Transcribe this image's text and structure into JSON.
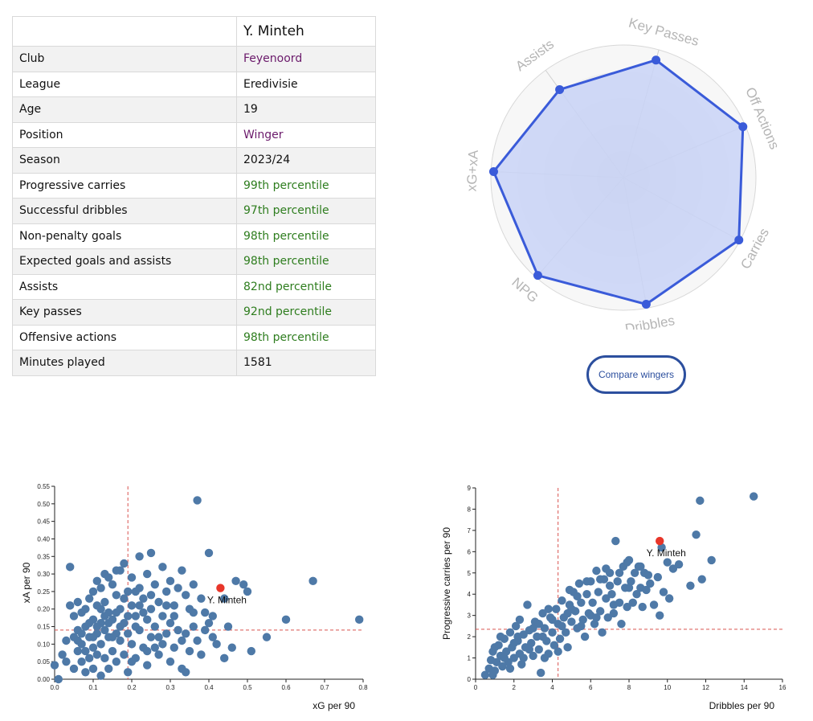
{
  "player_table": {
    "header": "Y. Minteh",
    "rows": [
      {
        "label": "Club",
        "value": "Feyenoord",
        "style": "purple"
      },
      {
        "label": "League",
        "value": "Eredivisie",
        "style": ""
      },
      {
        "label": "Age",
        "value": "19",
        "style": ""
      },
      {
        "label": "Position",
        "value": "Winger",
        "style": "purple"
      },
      {
        "label": "Season",
        "value": "2023/24",
        "style": ""
      },
      {
        "label": "Progressive carries",
        "value": "99th percentile",
        "style": "green"
      },
      {
        "label": "Successful dribbles",
        "value": "97th percentile",
        "style": "green"
      },
      {
        "label": "Non-penalty goals",
        "value": "98th percentile",
        "style": "green"
      },
      {
        "label": "Expected goals and assists",
        "value": "98th percentile",
        "style": "green"
      },
      {
        "label": "Assists",
        "value": "82nd percentile",
        "style": "green"
      },
      {
        "label": "Key passes",
        "value": "92nd percentile",
        "style": "green"
      },
      {
        "label": "Offensive actions",
        "value": "98th percentile",
        "style": "green"
      },
      {
        "label": "Minutes played",
        "value": "1581",
        "style": ""
      }
    ]
  },
  "compare_button": "Compare wingers",
  "colors": {
    "radar_line": "#3a5bd9",
    "radar_fill": "#c9d3f7",
    "scatter_point": "#4e79a7",
    "highlight_point": "#e8362a",
    "median_line": "#d9534f",
    "purple_text": "#6b1a6b",
    "green_text": "#2e7d1e"
  },
  "chart_data": [
    {
      "type": "radar",
      "axes": [
        "Key Passes",
        "Off Actions",
        "Carries",
        "Dribbles",
        "NPG",
        "xG+xA",
        "Assists"
      ],
      "values": [
        92,
        98,
        99,
        97,
        98,
        98,
        82
      ],
      "range": [
        0,
        100
      ]
    },
    {
      "type": "scatter",
      "xlabel": "xG per 90",
      "ylabel": "xA per 90",
      "xlim": [
        0,
        0.8
      ],
      "ylim": [
        0,
        0.55
      ],
      "xticks": [
        "0.0",
        "0.1",
        "0.2",
        "0.3",
        "0.4",
        "0.5",
        "0.6",
        "0.7",
        "0.8"
      ],
      "yticks": [
        "0.00",
        "0.05",
        "0.10",
        "0.15",
        "0.20",
        "0.25",
        "0.30",
        "0.35",
        "0.40",
        "0.45",
        "0.50",
        "0.55"
      ],
      "median_x": 0.19,
      "median_y": 0.14,
      "highlight": {
        "name": "Y. Minteh",
        "x": 0.43,
        "y": 0.26
      },
      "points": [
        [
          0.0,
          0.04
        ],
        [
          0.01,
          0.0
        ],
        [
          0.02,
          0.07
        ],
        [
          0.03,
          0.11
        ],
        [
          0.03,
          0.05
        ],
        [
          0.04,
          0.32
        ],
        [
          0.04,
          0.21
        ],
        [
          0.05,
          0.18
        ],
        [
          0.05,
          0.12
        ],
        [
          0.05,
          0.03
        ],
        [
          0.06,
          0.22
        ],
        [
          0.06,
          0.14
        ],
        [
          0.06,
          0.08
        ],
        [
          0.07,
          0.19
        ],
        [
          0.07,
          0.1
        ],
        [
          0.07,
          0.05
        ],
        [
          0.08,
          0.2
        ],
        [
          0.08,
          0.15
        ],
        [
          0.08,
          0.02
        ],
        [
          0.09,
          0.23
        ],
        [
          0.09,
          0.12
        ],
        [
          0.09,
          0.06
        ],
        [
          0.1,
          0.25
        ],
        [
          0.1,
          0.17
        ],
        [
          0.1,
          0.09
        ],
        [
          0.1,
          0.03
        ],
        [
          0.11,
          0.28
        ],
        [
          0.11,
          0.21
        ],
        [
          0.11,
          0.13
        ],
        [
          0.11,
          0.07
        ],
        [
          0.12,
          0.26
        ],
        [
          0.12,
          0.16
        ],
        [
          0.12,
          0.1
        ],
        [
          0.12,
          0.01
        ],
        [
          0.13,
          0.3
        ],
        [
          0.13,
          0.22
        ],
        [
          0.13,
          0.14
        ],
        [
          0.13,
          0.06
        ],
        [
          0.14,
          0.19
        ],
        [
          0.14,
          0.12
        ],
        [
          0.14,
          0.03
        ],
        [
          0.15,
          0.27
        ],
        [
          0.15,
          0.17
        ],
        [
          0.15,
          0.08
        ],
        [
          0.16,
          0.24
        ],
        [
          0.16,
          0.13
        ],
        [
          0.16,
          0.05
        ],
        [
          0.17,
          0.31
        ],
        [
          0.17,
          0.2
        ],
        [
          0.17,
          0.11
        ],
        [
          0.18,
          0.33
        ],
        [
          0.18,
          0.16
        ],
        [
          0.18,
          0.07
        ],
        [
          0.19,
          0.25
        ],
        [
          0.19,
          0.13
        ],
        [
          0.19,
          0.02
        ],
        [
          0.2,
          0.29
        ],
        [
          0.2,
          0.21
        ],
        [
          0.2,
          0.1
        ],
        [
          0.21,
          0.18
        ],
        [
          0.21,
          0.06
        ],
        [
          0.22,
          0.35
        ],
        [
          0.22,
          0.26
        ],
        [
          0.22,
          0.14
        ],
        [
          0.23,
          0.23
        ],
        [
          0.23,
          0.09
        ],
        [
          0.24,
          0.3
        ],
        [
          0.24,
          0.17
        ],
        [
          0.24,
          0.04
        ],
        [
          0.25,
          0.36
        ],
        [
          0.25,
          0.2
        ],
        [
          0.25,
          0.12
        ],
        [
          0.26,
          0.27
        ],
        [
          0.26,
          0.15
        ],
        [
          0.27,
          0.22
        ],
        [
          0.27,
          0.07
        ],
        [
          0.28,
          0.32
        ],
        [
          0.28,
          0.18
        ],
        [
          0.28,
          0.1
        ],
        [
          0.29,
          0.25
        ],
        [
          0.29,
          0.13
        ],
        [
          0.3,
          0.28
        ],
        [
          0.3,
          0.16
        ],
        [
          0.3,
          0.05
        ],
        [
          0.31,
          0.21
        ],
        [
          0.31,
          0.09
        ],
        [
          0.32,
          0.26
        ],
        [
          0.32,
          0.14
        ],
        [
          0.33,
          0.31
        ],
        [
          0.33,
          0.11
        ],
        [
          0.33,
          0.03
        ],
        [
          0.34,
          0.24
        ],
        [
          0.34,
          0.02
        ],
        [
          0.35,
          0.2
        ],
        [
          0.35,
          0.08
        ],
        [
          0.36,
          0.27
        ],
        [
          0.36,
          0.15
        ],
        [
          0.37,
          0.51
        ],
        [
          0.37,
          0.11
        ],
        [
          0.38,
          0.23
        ],
        [
          0.38,
          0.07
        ],
        [
          0.39,
          0.19
        ],
        [
          0.4,
          0.36
        ],
        [
          0.4,
          0.16
        ],
        [
          0.41,
          0.12
        ],
        [
          0.42,
          0.1
        ],
        [
          0.44,
          0.06
        ],
        [
          0.44,
          0.23
        ],
        [
          0.45,
          0.15
        ],
        [
          0.46,
          0.09
        ],
        [
          0.47,
          0.28
        ],
        [
          0.49,
          0.27
        ],
        [
          0.5,
          0.25
        ],
        [
          0.51,
          0.08
        ],
        [
          0.55,
          0.12
        ],
        [
          0.6,
          0.17
        ],
        [
          0.67,
          0.28
        ],
        [
          0.79,
          0.17
        ],
        [
          0.14,
          0.29
        ],
        [
          0.16,
          0.31
        ],
        [
          0.21,
          0.25
        ],
        [
          0.23,
          0.19
        ],
        [
          0.26,
          0.09
        ],
        [
          0.18,
          0.23
        ],
        [
          0.12,
          0.2
        ],
        [
          0.09,
          0.16
        ],
        [
          0.15,
          0.12
        ],
        [
          0.21,
          0.15
        ],
        [
          0.27,
          0.12
        ],
        [
          0.31,
          0.18
        ],
        [
          0.24,
          0.08
        ],
        [
          0.2,
          0.05
        ],
        [
          0.17,
          0.15
        ],
        [
          0.13,
          0.18
        ],
        [
          0.1,
          0.12
        ],
        [
          0.08,
          0.08
        ],
        [
          0.06,
          0.11
        ],
        [
          0.29,
          0.21
        ],
        [
          0.34,
          0.13
        ],
        [
          0.36,
          0.19
        ],
        [
          0.39,
          0.14
        ],
        [
          0.41,
          0.18
        ],
        [
          0.25,
          0.24
        ],
        [
          0.22,
          0.21
        ],
        [
          0.19,
          0.18
        ],
        [
          0.16,
          0.19
        ],
        [
          0.14,
          0.16
        ],
        [
          0.11,
          0.15
        ],
        [
          0.07,
          0.13
        ]
      ]
    },
    {
      "type": "scatter",
      "xlabel": "Dribbles per 90",
      "ylabel": "Progressive carries per 90",
      "xlim": [
        0,
        16
      ],
      "ylim": [
        0,
        9
      ],
      "xticks": [
        "0",
        "2",
        "4",
        "6",
        "8",
        "10",
        "12",
        "14",
        "16"
      ],
      "yticks": [
        "0",
        "1",
        "2",
        "3",
        "4",
        "5",
        "6",
        "7",
        "8",
        "9"
      ],
      "median_x": 4.3,
      "median_y": 2.35,
      "highlight": {
        "name": "Y. Minteh",
        "x": 9.6,
        "y": 6.5
      },
      "points": [
        [
          0.5,
          0.2
        ],
        [
          0.7,
          0.5
        ],
        [
          0.8,
          0.9
        ],
        [
          0.9,
          1.3
        ],
        [
          1.0,
          0.4
        ],
        [
          1.1,
          0.8
        ],
        [
          1.2,
          1.6
        ],
        [
          1.3,
          1.1
        ],
        [
          1.4,
          0.6
        ],
        [
          1.5,
          1.9
        ],
        [
          1.6,
          1.3
        ],
        [
          1.7,
          0.8
        ],
        [
          1.8,
          2.2
        ],
        [
          1.9,
          1.5
        ],
        [
          2.0,
          1.0
        ],
        [
          2.1,
          2.5
        ],
        [
          2.2,
          1.8
        ],
        [
          2.3,
          1.2
        ],
        [
          2.4,
          0.7
        ],
        [
          2.5,
          2.1
        ],
        [
          2.6,
          1.5
        ],
        [
          2.7,
          3.5
        ],
        [
          2.8,
          2.3
        ],
        [
          2.9,
          1.7
        ],
        [
          3.0,
          1.1
        ],
        [
          3.1,
          2.7
        ],
        [
          3.2,
          2.0
        ],
        [
          3.3,
          1.4
        ],
        [
          3.4,
          0.3
        ],
        [
          3.5,
          3.1
        ],
        [
          3.6,
          2.4
        ],
        [
          3.7,
          1.8
        ],
        [
          3.8,
          1.2
        ],
        [
          3.9,
          2.9
        ],
        [
          4.0,
          2.2
        ],
        [
          4.1,
          1.6
        ],
        [
          4.2,
          3.3
        ],
        [
          4.3,
          2.6
        ],
        [
          4.4,
          1.9
        ],
        [
          4.5,
          3.7
        ],
        [
          4.6,
          2.9
        ],
        [
          4.7,
          2.2
        ],
        [
          4.8,
          1.5
        ],
        [
          4.9,
          3.5
        ],
        [
          5.0,
          2.7
        ],
        [
          5.1,
          4.1
        ],
        [
          5.2,
          3.2
        ],
        [
          5.3,
          2.4
        ],
        [
          5.4,
          4.5
        ],
        [
          5.5,
          3.6
        ],
        [
          5.6,
          2.8
        ],
        [
          5.7,
          2.0
        ],
        [
          5.8,
          4.0
        ],
        [
          5.9,
          3.1
        ],
        [
          6.0,
          4.6
        ],
        [
          6.1,
          3.6
        ],
        [
          6.2,
          2.6
        ],
        [
          6.3,
          5.1
        ],
        [
          6.4,
          4.1
        ],
        [
          6.5,
          3.2
        ],
        [
          6.6,
          2.2
        ],
        [
          6.7,
          4.7
        ],
        [
          6.8,
          3.8
        ],
        [
          6.9,
          2.9
        ],
        [
          7.0,
          5.0
        ],
        [
          7.1,
          4.0
        ],
        [
          7.2,
          3.1
        ],
        [
          7.3,
          6.5
        ],
        [
          7.4,
          4.6
        ],
        [
          7.5,
          3.6
        ],
        [
          7.6,
          2.6
        ],
        [
          7.7,
          5.3
        ],
        [
          7.8,
          4.3
        ],
        [
          7.9,
          3.4
        ],
        [
          8.0,
          5.6
        ],
        [
          8.1,
          4.6
        ],
        [
          8.2,
          3.6
        ],
        [
          8.3,
          5.0
        ],
        [
          8.4,
          4.0
        ],
        [
          8.5,
          5.3
        ],
        [
          8.6,
          4.3
        ],
        [
          8.7,
          3.4
        ],
        [
          8.8,
          5.0
        ],
        [
          8.9,
          4.2
        ],
        [
          9.1,
          4.5
        ],
        [
          9.3,
          3.5
        ],
        [
          9.5,
          4.8
        ],
        [
          9.6,
          3.0
        ],
        [
          9.7,
          6.2
        ],
        [
          9.8,
          4.1
        ],
        [
          10.0,
          5.5
        ],
        [
          10.1,
          3.8
        ],
        [
          10.3,
          5.2
        ],
        [
          10.6,
          5.4
        ],
        [
          11.2,
          4.4
        ],
        [
          11.5,
          6.8
        ],
        [
          11.7,
          8.4
        ],
        [
          11.8,
          4.7
        ],
        [
          12.3,
          5.6
        ],
        [
          14.5,
          8.6
        ],
        [
          6.0,
          3.0
        ],
        [
          5.5,
          2.5
        ],
        [
          5.0,
          3.3
        ],
        [
          4.5,
          2.5
        ],
        [
          4.0,
          2.8
        ],
        [
          3.5,
          2.0
        ],
        [
          3.0,
          2.4
        ],
        [
          2.5,
          1.0
        ],
        [
          2.0,
          1.7
        ],
        [
          1.5,
          1.0
        ],
        [
          6.5,
          4.7
        ],
        [
          7.0,
          4.4
        ],
        [
          7.5,
          5.0
        ],
        [
          8.0,
          4.3
        ],
        [
          6.8,
          5.2
        ],
        [
          5.8,
          4.6
        ],
        [
          5.3,
          3.9
        ],
        [
          4.8,
          3.1
        ],
        [
          4.3,
          1.3
        ],
        [
          3.8,
          3.3
        ],
        [
          3.3,
          2.6
        ],
        [
          2.8,
          1.4
        ],
        [
          2.3,
          2.8
        ],
        [
          1.8,
          0.5
        ],
        [
          1.3,
          2.0
        ],
        [
          0.9,
          0.2
        ],
        [
          1.0,
          1.5
        ],
        [
          2.2,
          2.0
        ],
        [
          3.6,
          1.0
        ],
        [
          4.9,
          4.2
        ],
        [
          6.3,
          2.9
        ],
        [
          7.2,
          3.5
        ],
        [
          8.6,
          5.3
        ],
        [
          9.0,
          4.9
        ],
        [
          7.9,
          5.5
        ]
      ]
    }
  ]
}
